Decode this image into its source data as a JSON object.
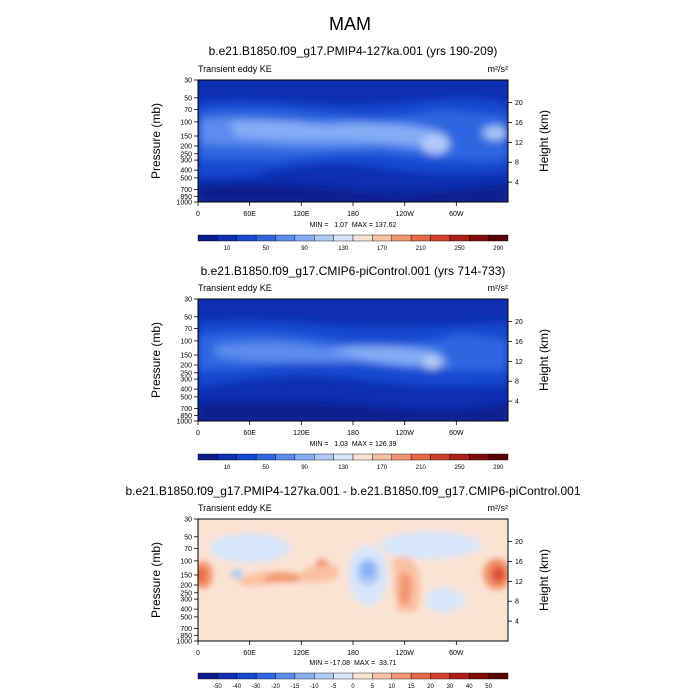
{
  "figure": {
    "title": "MAM"
  },
  "colorscales": {
    "ke": {
      "colors": [
        "#0b1a8c",
        "#0d2fb0",
        "#1449d0",
        "#2f66e0",
        "#5b8cee",
        "#85adf5",
        "#b0caf8",
        "#d8e6fb",
        "#fbe3d4",
        "#f9c1a4",
        "#f39670",
        "#e76a47",
        "#d1402a",
        "#ad1e16",
        "#800d0a",
        "#5a0405"
      ],
      "labels": [
        "10",
        "50",
        "90",
        "130",
        "170",
        "210",
        "250",
        "290"
      ]
    },
    "diff": {
      "colors": [
        "#0b1a8c",
        "#0d2fb0",
        "#1449d0",
        "#2f66e0",
        "#5b8cee",
        "#85adf5",
        "#b0caf8",
        "#d8e6fb",
        "#fbe3d4",
        "#f9c1a4",
        "#f39670",
        "#e76a47",
        "#d1402a",
        "#ad1e16",
        "#800d0a",
        "#5a0405"
      ],
      "labels": [
        "-50",
        "-40",
        "-30",
        "-20",
        "-15",
        "-10",
        "-5",
        "0",
        "5",
        "10",
        "15",
        "20",
        "30",
        "40",
        "50"
      ]
    }
  },
  "chart_data": [
    {
      "type": "heatmap",
      "title": "b.e21.B1850.f09_g17.PMIP4-127ka.001 (yrs 190-209)",
      "variable": "Transient eddy KE",
      "units": "m²/s²",
      "ylabel": "Pressure (mb)",
      "y2label": "Height (km)",
      "xticks": [
        "0",
        "60E",
        "120E",
        "180",
        "120W",
        "60W"
      ],
      "yticks": [
        "30",
        "50",
        "70",
        "100",
        "150",
        "200",
        "250",
        "300",
        "400",
        "500",
        "700",
        "850",
        "1000"
      ],
      "y2ticks": [
        "20",
        "16",
        "12",
        "8",
        "4"
      ],
      "min": 1.07,
      "max": 137.62,
      "stats_label": "MIN =   1.07  MAX = 137.62",
      "colorscale": "ke"
    },
    {
      "type": "heatmap",
      "title": "b.e21.B1850.f09_g17.CMIP6-piControl.001 (yrs 714-733)",
      "variable": "Transient eddy KE",
      "units": "m²/s²",
      "ylabel": "Pressure (mb)",
      "y2label": "Height (km)",
      "xticks": [
        "0",
        "60E",
        "120E",
        "180",
        "120W",
        "60W"
      ],
      "yticks": [
        "30",
        "50",
        "70",
        "100",
        "150",
        "200",
        "250",
        "300",
        "400",
        "500",
        "700",
        "850",
        "1000"
      ],
      "y2ticks": [
        "20",
        "16",
        "12",
        "8",
        "4"
      ],
      "min": 1.03,
      "max": 126.39,
      "stats_label": "MIN =   1.03  MAX = 126.39",
      "colorscale": "ke"
    },
    {
      "type": "heatmap",
      "title": "b.e21.B1850.f09_g17.PMIP4-127ka.001 - b.e21.B1850.f09_g17.CMIP6-piControl.001",
      "variable": "Transient eddy KE",
      "units": "m²/s²",
      "ylabel": "Pressure (mb)",
      "y2label": "Height (km)",
      "xticks": [
        "0",
        "60E",
        "120E",
        "180",
        "120W",
        "60W"
      ],
      "yticks": [
        "30",
        "50",
        "70",
        "100",
        "150",
        "200",
        "250",
        "300",
        "400",
        "500",
        "700",
        "850",
        "1000"
      ],
      "y2ticks": [
        "20",
        "16",
        "12",
        "8",
        "4"
      ],
      "min": -17.08,
      "max": 33.71,
      "stats_label": "MIN = -17.08  MAX =  33.71",
      "colorscale": "diff"
    }
  ]
}
